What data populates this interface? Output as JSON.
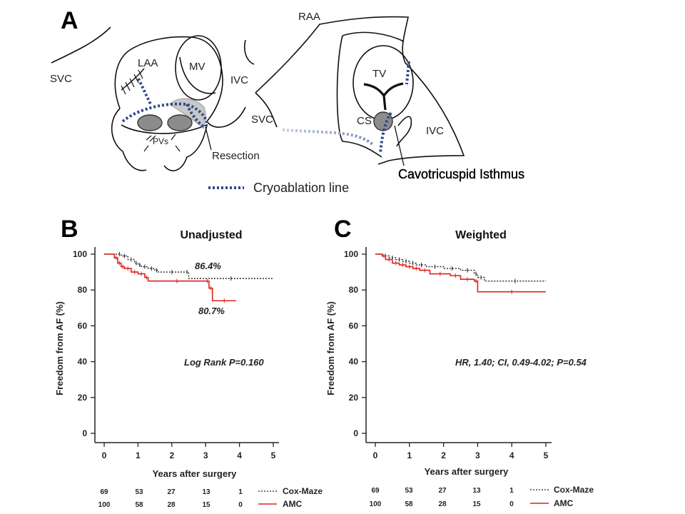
{
  "panel_a": {
    "letter": "A",
    "left_labels": {
      "svc": "SVC",
      "laa": "LAA",
      "mv": "MV",
      "ivc": "IVC",
      "pvs": "PVs",
      "resection": "Resection"
    },
    "right_labels": {
      "raa": "RAA",
      "tv": "TV",
      "svc": "SVC",
      "cs": "CS",
      "ivc": "IVC",
      "isthmus": "Cavotricuspid Isthmus"
    },
    "legend_label": "Cryoablation line",
    "colors": {
      "cryo_line": "#2f4a8a",
      "cryo_line_light": "#a8b4d2",
      "resection": "#c8c8c8",
      "pv": "#8c8c8c"
    }
  },
  "chart_data": [
    {
      "letter": "B",
      "type": "line",
      "title": "Unadjusted",
      "xlabel": "Years after surgery",
      "ylabel": "Freedom from AF (%)",
      "xlim": [
        0,
        5
      ],
      "ylim": [
        0,
        100
      ],
      "xticks": [
        0,
        1,
        2,
        3,
        4,
        5
      ],
      "yticks": [
        0,
        20,
        40,
        60,
        80,
        100
      ],
      "annotations": [
        "86.4%",
        "80.7%",
        "Log Rank P=0.160"
      ],
      "series": [
        {
          "name": "Cox-Maze",
          "color": "#222222",
          "style": "dotted",
          "x": [
            0,
            0.4,
            0.5,
            0.7,
            0.9,
            1.0,
            1.1,
            1.3,
            1.5,
            1.6,
            2.4,
            2.5,
            5.0
          ],
          "y": [
            100,
            100,
            99,
            97,
            95,
            94,
            93,
            92,
            91,
            90,
            90,
            86.4,
            86.4
          ]
        },
        {
          "name": "AMC",
          "color": "#e0201b",
          "style": "solid",
          "x": [
            0,
            0.3,
            0.4,
            0.5,
            0.6,
            0.8,
            1.0,
            1.2,
            1.3,
            3.0,
            3.1,
            3.2,
            3.9
          ],
          "y": [
            100,
            98,
            95,
            93,
            92,
            90,
            89,
            87,
            85,
            85,
            81,
            74,
            74
          ]
        }
      ],
      "risk_table": {
        "Cox-Maze": [
          69,
          53,
          27,
          13,
          1
        ],
        "AMC": [
          100,
          58,
          28,
          15,
          0
        ]
      }
    },
    {
      "letter": "C",
      "type": "line",
      "title": "Weighted",
      "xlabel": "Years after surgery",
      "ylabel": "Freedom from AF (%)",
      "xlim": [
        0,
        5
      ],
      "ylim": [
        0,
        100
      ],
      "xticks": [
        0,
        1,
        2,
        3,
        4,
        5
      ],
      "yticks": [
        0,
        20,
        40,
        60,
        80,
        100
      ],
      "annotations": [
        "HR, 1.40; CI, 0.49-4.02; P=0.54"
      ],
      "series": [
        {
          "name": "Cox-Maze",
          "color": "#222222",
          "style": "dotted",
          "x": [
            0,
            0.2,
            0.4,
            0.6,
            0.8,
            1.0,
            1.2,
            1.5,
            2.0,
            2.5,
            2.9,
            3.0,
            3.2,
            5.0
          ],
          "y": [
            100,
            99,
            98,
            97,
            96,
            95,
            94,
            93,
            92,
            91,
            89,
            87,
            85,
            85
          ]
        },
        {
          "name": "AMC",
          "color": "#e0201b",
          "style": "solid",
          "x": [
            0,
            0.2,
            0.3,
            0.5,
            0.7,
            0.9,
            1.1,
            1.3,
            1.6,
            2.2,
            2.5,
            2.9,
            3.0,
            5.0
          ],
          "y": [
            100,
            99,
            97,
            95,
            94,
            93,
            92,
            91,
            89,
            88,
            86,
            85,
            79,
            79
          ]
        }
      ],
      "risk_table": {
        "Cox-Maze": [
          69,
          53,
          27,
          13,
          1
        ],
        "AMC": [
          100,
          58,
          28,
          15,
          0
        ]
      }
    }
  ]
}
